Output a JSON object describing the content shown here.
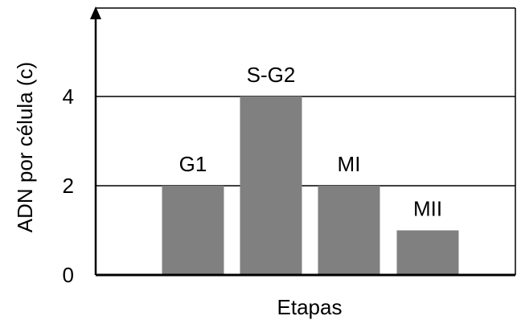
{
  "chart_data": {
    "type": "bar",
    "categories": [
      "G1",
      "S-G2",
      "MI",
      "MII"
    ],
    "values": [
      2,
      4,
      2,
      1
    ],
    "title": "",
    "xlabel": "Etapas",
    "ylabel": "ADN por célula (c)",
    "ylim": [
      0,
      5.85
    ],
    "yticks": [
      0,
      2,
      4
    ],
    "grid": true,
    "legend": "none",
    "bar_color": "#808080",
    "grid_color": "#000000",
    "axis_color": "#000000"
  }
}
